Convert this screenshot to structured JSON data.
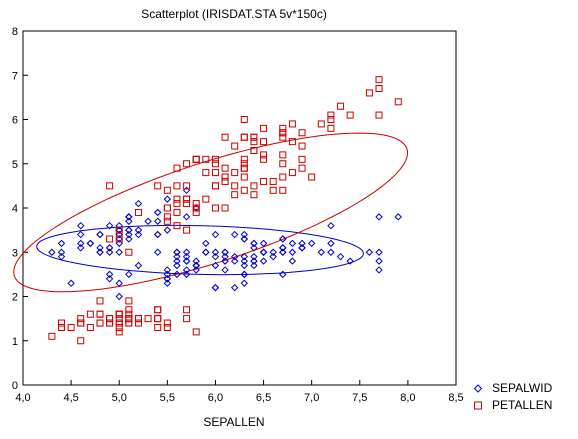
{
  "chart_data": {
    "type": "scatter",
    "title": "Scatterplot (IRISDAT.STA 5v*150c)",
    "xlabel": "SEPALLEN",
    "ylabel": "",
    "xlim": [
      4.0,
      8.5
    ],
    "ylim": [
      0,
      8
    ],
    "x_ticks": [
      "4,0",
      "4,5",
      "5,0",
      "5,5",
      "6,0",
      "6,5",
      "7,0",
      "7,5",
      "8,0",
      "8,5"
    ],
    "y_ticks": [
      "0",
      "1",
      "2",
      "3",
      "4",
      "5",
      "6",
      "7",
      "8"
    ],
    "grid": false,
    "legend_position": "bottom-right",
    "series": [
      {
        "name": "SEPALWID",
        "marker": "diamond",
        "color": "#0000cc",
        "ellipse": {
          "cx": 5.84,
          "cy": 3.05,
          "rx": 1.7,
          "ry": 0.55,
          "angle_deg": -3
        },
        "points": [
          [
            5.1,
            3.5
          ],
          [
            4.9,
            3.0
          ],
          [
            4.7,
            3.2
          ],
          [
            4.6,
            3.1
          ],
          [
            5.0,
            3.6
          ],
          [
            5.4,
            3.9
          ],
          [
            4.6,
            3.4
          ],
          [
            5.0,
            3.4
          ],
          [
            4.4,
            2.9
          ],
          [
            4.9,
            3.1
          ],
          [
            5.4,
            3.7
          ],
          [
            4.8,
            3.4
          ],
          [
            4.8,
            3.0
          ],
          [
            4.3,
            3.0
          ],
          [
            5.8,
            4.0
          ],
          [
            5.7,
            4.4
          ],
          [
            5.4,
            3.9
          ],
          [
            5.1,
            3.5
          ],
          [
            5.7,
            3.8
          ],
          [
            5.1,
            3.8
          ],
          [
            5.4,
            3.4
          ],
          [
            5.1,
            3.7
          ],
          [
            4.6,
            3.6
          ],
          [
            5.1,
            3.3
          ],
          [
            4.8,
            3.4
          ],
          [
            5.0,
            3.0
          ],
          [
            5.0,
            3.4
          ],
          [
            5.2,
            3.5
          ],
          [
            5.2,
            3.4
          ],
          [
            4.7,
            3.2
          ],
          [
            4.8,
            3.1
          ],
          [
            5.4,
            3.4
          ],
          [
            5.2,
            4.1
          ],
          [
            5.5,
            4.2
          ],
          [
            4.9,
            3.1
          ],
          [
            5.0,
            3.2
          ],
          [
            5.5,
            3.5
          ],
          [
            4.9,
            3.6
          ],
          [
            4.4,
            3.0
          ],
          [
            5.1,
            3.4
          ],
          [
            5.0,
            3.5
          ],
          [
            4.5,
            2.3
          ],
          [
            4.4,
            3.2
          ],
          [
            5.0,
            3.5
          ],
          [
            5.1,
            3.8
          ],
          [
            4.8,
            3.0
          ],
          [
            5.1,
            3.8
          ],
          [
            4.6,
            3.2
          ],
          [
            5.3,
            3.7
          ],
          [
            5.0,
            3.3
          ],
          [
            7.0,
            3.2
          ],
          [
            6.4,
            3.2
          ],
          [
            6.9,
            3.1
          ],
          [
            5.5,
            2.3
          ],
          [
            6.5,
            2.8
          ],
          [
            5.7,
            2.8
          ],
          [
            6.3,
            3.3
          ],
          [
            4.9,
            2.4
          ],
          [
            6.6,
            2.9
          ],
          [
            5.2,
            2.7
          ],
          [
            5.0,
            2.0
          ],
          [
            5.9,
            3.0
          ],
          [
            6.0,
            2.2
          ],
          [
            6.1,
            2.9
          ],
          [
            5.6,
            2.9
          ],
          [
            6.7,
            3.1
          ],
          [
            5.6,
            3.0
          ],
          [
            5.8,
            2.7
          ],
          [
            6.2,
            2.2
          ],
          [
            5.6,
            2.5
          ],
          [
            5.9,
            3.2
          ],
          [
            6.1,
            2.8
          ],
          [
            6.3,
            2.5
          ],
          [
            6.1,
            2.8
          ],
          [
            6.4,
            2.9
          ],
          [
            6.6,
            3.0
          ],
          [
            6.8,
            2.8
          ],
          [
            6.7,
            3.0
          ],
          [
            6.0,
            2.9
          ],
          [
            5.7,
            2.6
          ],
          [
            5.5,
            2.4
          ],
          [
            5.5,
            2.4
          ],
          [
            5.8,
            2.7
          ],
          [
            6.0,
            2.7
          ],
          [
            5.4,
            3.0
          ],
          [
            6.0,
            3.4
          ],
          [
            6.7,
            3.1
          ],
          [
            6.3,
            2.3
          ],
          [
            5.6,
            3.0
          ],
          [
            5.5,
            2.5
          ],
          [
            5.5,
            2.6
          ],
          [
            6.1,
            3.0
          ],
          [
            5.8,
            2.6
          ],
          [
            5.0,
            2.3
          ],
          [
            5.6,
            2.7
          ],
          [
            5.7,
            3.0
          ],
          [
            5.7,
            2.9
          ],
          [
            6.2,
            2.9
          ],
          [
            5.1,
            2.5
          ],
          [
            5.7,
            2.8
          ],
          [
            6.3,
            3.3
          ],
          [
            5.8,
            2.7
          ],
          [
            7.1,
            3.0
          ],
          [
            6.3,
            2.9
          ],
          [
            6.5,
            3.0
          ],
          [
            7.6,
            3.0
          ],
          [
            4.9,
            2.5
          ],
          [
            7.3,
            2.9
          ],
          [
            6.7,
            2.5
          ],
          [
            7.2,
            3.6
          ],
          [
            6.5,
            3.2
          ],
          [
            6.4,
            2.7
          ],
          [
            6.8,
            3.0
          ],
          [
            5.7,
            2.5
          ],
          [
            5.8,
            2.8
          ],
          [
            6.4,
            3.2
          ],
          [
            6.5,
            3.0
          ],
          [
            7.7,
            3.8
          ],
          [
            7.7,
            2.6
          ],
          [
            6.0,
            2.2
          ],
          [
            6.9,
            3.2
          ],
          [
            5.6,
            2.8
          ],
          [
            7.7,
            2.8
          ],
          [
            6.3,
            2.7
          ],
          [
            6.7,
            3.3
          ],
          [
            7.2,
            3.2
          ],
          [
            6.2,
            2.8
          ],
          [
            6.1,
            3.0
          ],
          [
            6.4,
            2.8
          ],
          [
            7.2,
            3.0
          ],
          [
            7.4,
            2.8
          ],
          [
            7.9,
            3.8
          ],
          [
            6.4,
            2.8
          ],
          [
            6.3,
            2.8
          ],
          [
            6.1,
            2.6
          ],
          [
            7.7,
            3.0
          ],
          [
            6.3,
            3.4
          ],
          [
            6.4,
            3.1
          ],
          [
            6.0,
            3.0
          ],
          [
            6.9,
            3.1
          ],
          [
            6.7,
            3.1
          ],
          [
            6.9,
            3.1
          ],
          [
            5.8,
            2.7
          ],
          [
            6.8,
            3.2
          ],
          [
            6.7,
            3.3
          ],
          [
            6.7,
            3.0
          ],
          [
            6.3,
            2.5
          ],
          [
            6.5,
            3.0
          ],
          [
            6.2,
            3.4
          ],
          [
            5.9,
            3.0
          ]
        ]
      },
      {
        "name": "PETALLEN",
        "marker": "square",
        "color": "#cc0000",
        "ellipse": {
          "cx": 5.95,
          "cy": 3.9,
          "rx": 2.55,
          "ry": 0.95,
          "angle_deg": 40
        },
        "points": [
          [
            5.1,
            1.4
          ],
          [
            4.9,
            1.4
          ],
          [
            4.7,
            1.3
          ],
          [
            4.6,
            1.5
          ],
          [
            5.0,
            1.4
          ],
          [
            5.4,
            1.7
          ],
          [
            4.6,
            1.4
          ],
          [
            5.0,
            1.5
          ],
          [
            4.4,
            1.4
          ],
          [
            4.9,
            1.5
          ],
          [
            5.4,
            1.5
          ],
          [
            4.8,
            1.6
          ],
          [
            4.8,
            1.4
          ],
          [
            4.3,
            1.1
          ],
          [
            5.8,
            1.2
          ],
          [
            5.7,
            1.5
          ],
          [
            5.4,
            1.3
          ],
          [
            5.1,
            1.4
          ],
          [
            5.7,
            1.7
          ],
          [
            5.1,
            1.5
          ],
          [
            5.4,
            1.7
          ],
          [
            5.1,
            1.5
          ],
          [
            4.6,
            1.0
          ],
          [
            5.1,
            1.7
          ],
          [
            4.8,
            1.9
          ],
          [
            5.0,
            1.6
          ],
          [
            5.0,
            1.6
          ],
          [
            5.2,
            1.5
          ],
          [
            5.2,
            1.4
          ],
          [
            4.7,
            1.6
          ],
          [
            4.8,
            1.6
          ],
          [
            5.4,
            1.5
          ],
          [
            5.2,
            1.5
          ],
          [
            5.5,
            1.4
          ],
          [
            4.9,
            1.5
          ],
          [
            5.0,
            1.2
          ],
          [
            5.5,
            1.3
          ],
          [
            4.9,
            1.4
          ],
          [
            4.4,
            1.3
          ],
          [
            5.1,
            1.5
          ],
          [
            5.0,
            1.3
          ],
          [
            4.5,
            1.3
          ],
          [
            4.4,
            1.3
          ],
          [
            5.0,
            1.6
          ],
          [
            5.1,
            1.9
          ],
          [
            4.8,
            1.4
          ],
          [
            5.1,
            1.6
          ],
          [
            4.6,
            1.4
          ],
          [
            5.3,
            1.5
          ],
          [
            5.0,
            1.4
          ],
          [
            7.0,
            4.7
          ],
          [
            6.4,
            4.5
          ],
          [
            6.9,
            4.9
          ],
          [
            5.5,
            4.0
          ],
          [
            6.5,
            4.6
          ],
          [
            5.7,
            4.5
          ],
          [
            6.3,
            4.7
          ],
          [
            4.9,
            3.3
          ],
          [
            6.6,
            4.6
          ],
          [
            5.2,
            3.9
          ],
          [
            5.0,
            3.5
          ],
          [
            5.9,
            4.2
          ],
          [
            6.0,
            4.0
          ],
          [
            6.1,
            4.7
          ],
          [
            5.6,
            3.6
          ],
          [
            6.7,
            4.4
          ],
          [
            5.6,
            4.5
          ],
          [
            5.8,
            4.1
          ],
          [
            6.2,
            4.5
          ],
          [
            5.6,
            3.9
          ],
          [
            5.9,
            4.8
          ],
          [
            6.1,
            4.0
          ],
          [
            6.3,
            4.9
          ],
          [
            6.1,
            4.7
          ],
          [
            6.4,
            4.3
          ],
          [
            6.6,
            4.4
          ],
          [
            6.8,
            4.8
          ],
          [
            6.7,
            5.0
          ],
          [
            6.0,
            4.5
          ],
          [
            5.7,
            3.5
          ],
          [
            5.5,
            3.8
          ],
          [
            5.5,
            3.7
          ],
          [
            5.8,
            3.9
          ],
          [
            6.0,
            5.1
          ],
          [
            5.4,
            4.5
          ],
          [
            6.0,
            4.5
          ],
          [
            6.7,
            4.7
          ],
          [
            6.3,
            4.4
          ],
          [
            5.6,
            4.1
          ],
          [
            5.5,
            4.0
          ],
          [
            5.5,
            4.4
          ],
          [
            6.1,
            4.6
          ],
          [
            5.8,
            4.0
          ],
          [
            5.0,
            3.3
          ],
          [
            5.6,
            4.2
          ],
          [
            5.7,
            4.2
          ],
          [
            5.7,
            4.2
          ],
          [
            6.2,
            4.3
          ],
          [
            5.1,
            3.0
          ],
          [
            5.7,
            4.1
          ],
          [
            6.3,
            6.0
          ],
          [
            5.8,
            5.1
          ],
          [
            7.1,
            5.9
          ],
          [
            6.3,
            5.6
          ],
          [
            6.5,
            5.8
          ],
          [
            7.6,
            6.6
          ],
          [
            4.9,
            4.5
          ],
          [
            7.3,
            6.3
          ],
          [
            6.7,
            5.8
          ],
          [
            7.2,
            6.1
          ],
          [
            6.5,
            5.1
          ],
          [
            6.4,
            5.3
          ],
          [
            6.8,
            5.5
          ],
          [
            5.7,
            5.0
          ],
          [
            5.8,
            5.1
          ],
          [
            6.4,
            5.3
          ],
          [
            6.5,
            5.5
          ],
          [
            7.7,
            6.7
          ],
          [
            7.7,
            6.9
          ],
          [
            6.0,
            5.0
          ],
          [
            6.9,
            5.7
          ],
          [
            5.6,
            4.9
          ],
          [
            7.7,
            6.7
          ],
          [
            6.3,
            4.9
          ],
          [
            6.7,
            5.7
          ],
          [
            7.2,
            6.0
          ],
          [
            6.2,
            4.8
          ],
          [
            6.1,
            4.9
          ],
          [
            6.4,
            5.6
          ],
          [
            7.2,
            5.8
          ],
          [
            7.4,
            6.1
          ],
          [
            7.9,
            6.4
          ],
          [
            6.4,
            5.6
          ],
          [
            6.3,
            5.1
          ],
          [
            6.1,
            5.6
          ],
          [
            7.7,
            6.1
          ],
          [
            6.3,
            5.6
          ],
          [
            6.4,
            5.5
          ],
          [
            6.0,
            4.8
          ],
          [
            6.9,
            5.4
          ],
          [
            6.7,
            5.6
          ],
          [
            6.9,
            5.1
          ],
          [
            5.8,
            5.1
          ],
          [
            6.8,
            5.9
          ],
          [
            6.7,
            5.7
          ],
          [
            6.7,
            5.2
          ],
          [
            6.3,
            5.0
          ],
          [
            6.5,
            5.2
          ],
          [
            6.2,
            5.4
          ],
          [
            5.9,
            5.1
          ]
        ]
      }
    ]
  }
}
